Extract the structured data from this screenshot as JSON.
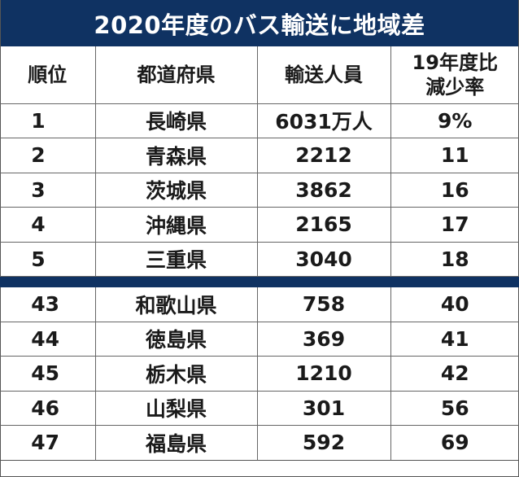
{
  "title": "2020年度のバス輸送に地域差",
  "colors": {
    "header_bg": "#0f3262",
    "header_text": "#ffffff"
  },
  "headers": {
    "rank": "順位",
    "prefecture": "都道府県",
    "passengers": "輸送人員",
    "decline_line1": "19年度比",
    "decline_line2": "減少率"
  },
  "top_rows": [
    {
      "rank": "1",
      "prefecture": "長崎県",
      "passengers": "6031万人",
      "decline": "9%"
    },
    {
      "rank": "2",
      "prefecture": "青森県",
      "passengers": "2212",
      "decline": "11"
    },
    {
      "rank": "3",
      "prefecture": "茨城県",
      "passengers": "3862",
      "decline": "16"
    },
    {
      "rank": "4",
      "prefecture": "沖縄県",
      "passengers": "2165",
      "decline": "17"
    },
    {
      "rank": "5",
      "prefecture": "三重県",
      "passengers": "3040",
      "decline": "18"
    }
  ],
  "bottom_rows": [
    {
      "rank": "43",
      "prefecture": "和歌山県",
      "passengers": "758",
      "decline": "40"
    },
    {
      "rank": "44",
      "prefecture": "徳島県",
      "passengers": "369",
      "decline": "41"
    },
    {
      "rank": "45",
      "prefecture": "栃木県",
      "passengers": "1210",
      "decline": "42"
    },
    {
      "rank": "46",
      "prefecture": "山梨県",
      "passengers": "301",
      "decline": "56"
    },
    {
      "rank": "47",
      "prefecture": "福島県",
      "passengers": "592",
      "decline": "69"
    }
  ]
}
